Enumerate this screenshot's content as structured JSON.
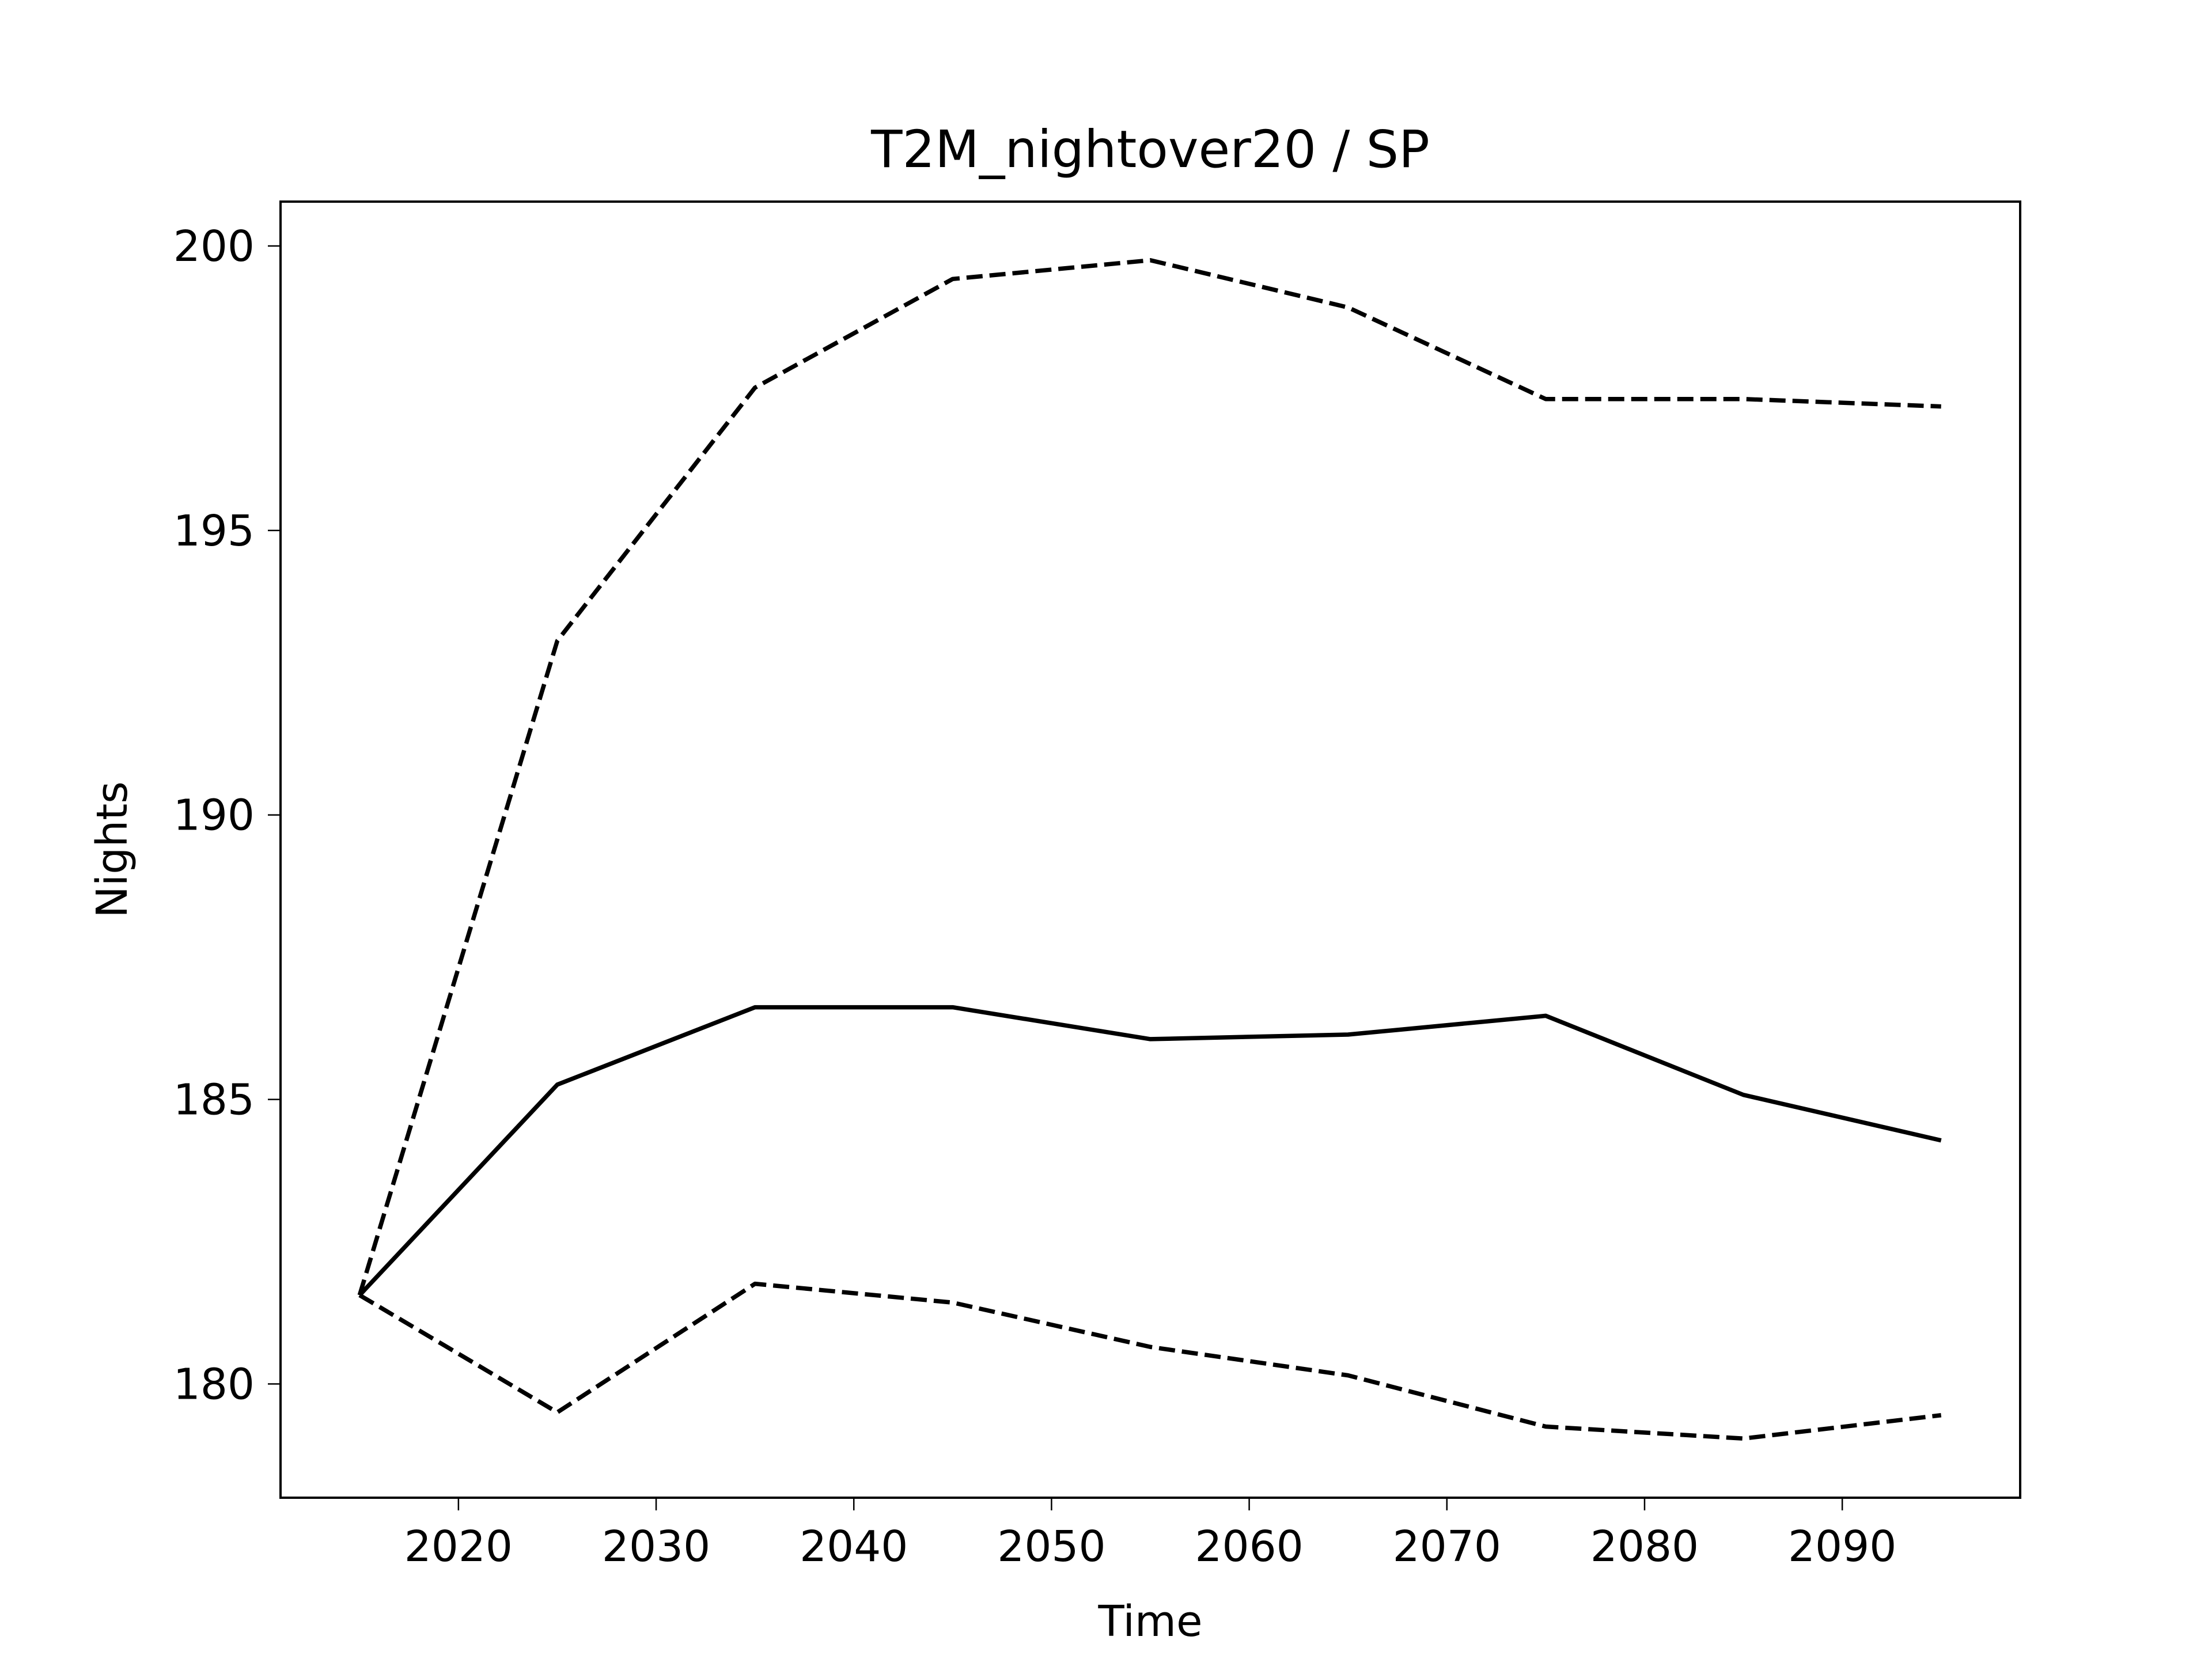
{
  "chart_data": {
    "type": "line",
    "title": "T2M_nightover20 / SP",
    "x_label": "Time",
    "y_label": "Nights",
    "x": [
      2015,
      2025,
      2035,
      2045,
      2055,
      2065,
      2075,
      2085,
      2095
    ],
    "series": [
      {
        "color": "#000000",
        "linestyle": "solid",
        "values": [
          181.56,
          185.26,
          186.62,
          186.62,
          186.06,
          186.14,
          186.47,
          185.08,
          184.28
        ]
      },
      {
        "color": "#000000",
        "linestyle": "dashed",
        "values": [
          181.56,
          193.06,
          197.51,
          199.42,
          199.75,
          198.92,
          197.31,
          197.31,
          197.18
        ]
      },
      {
        "color": "#000000",
        "linestyle": "dashed",
        "values": [
          181.56,
          179.5,
          181.76,
          181.43,
          180.65,
          180.15,
          179.25,
          179.04,
          179.45
        ]
      }
    ],
    "xlim": [
      2011,
      2099
    ],
    "ylim": [
      178.0,
      200.78
    ],
    "xticks": [
      2020,
      2030,
      2040,
      2050,
      2060,
      2070,
      2080,
      2090
    ],
    "yticks": [
      180,
      185,
      190,
      195,
      200
    ],
    "grid": false
  }
}
